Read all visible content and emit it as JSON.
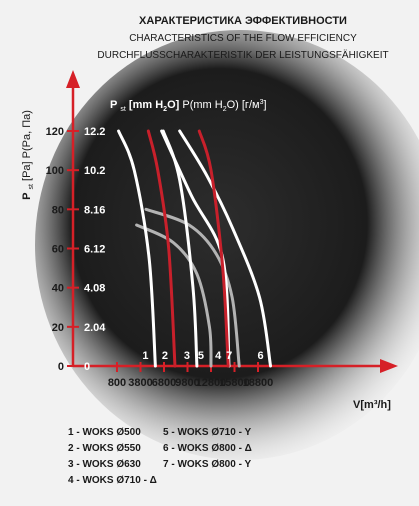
{
  "header": {
    "title_ru": "ХАРАКТЕРИСТИКА ЭФФЕКТИВНОСТИ",
    "title_en": "CHARACTERISTICS OF THE FLOW EFFICIENCY",
    "title_de": "DURCHFLUSSCHARAKTERISTIK DER LEISTUNGSFÄHIGKEIT"
  },
  "axes": {
    "y_label_main": "P",
    "y_label_sub": "st",
    "y_label_rest": "[Pa] P(Pa, Па)",
    "y2_label_main": "P",
    "y2_label_sub": "st",
    "y2_label_unit": "[mm H",
    "y2_label_2": "2",
    "y2_label_close": "O]",
    "y2_label_alt_open": "P(mm H",
    "y2_label_alt_close": "O) [г/м",
    "y2_label_alt_end": "]",
    "x_label": "V[m³/h]"
  },
  "colors": {
    "background": "#f2f2f2",
    "chart_bg": "#1a1a1a",
    "axis_arrow": "#d62027",
    "white_curve": "#ffffff",
    "red_curve": "#c8202b",
    "gray_curve": "#b3b3b3",
    "text": "#1a1a1a"
  },
  "chart_data": {
    "type": "line",
    "title": "CHARACTERISTICS OF THE FLOW EFFICIENCY",
    "xlabel": "V[m³/h]",
    "ylabel": "Pst [Pa] P(Pa, Па)",
    "y2label": "Pst [mm H2O] P(mm H2O) [г/м3]",
    "x_ticks": [
      800,
      3800,
      6800,
      9800,
      12800,
      15800,
      18800
    ],
    "x_tick_labels": [
      "800",
      "3800",
      "6800",
      "9800",
      "12800",
      "15800",
      "18800"
    ],
    "y_ticks": [
      0,
      20,
      40,
      60,
      80,
      100,
      120
    ],
    "y_tick_labels": [
      "0",
      "20",
      "40",
      "60",
      "80",
      "100",
      "120"
    ],
    "y2_tick_labels": [
      "0",
      "2.04",
      "4.08",
      "6.12",
      "8.16",
      "10.2",
      "12.2"
    ],
    "xlim": [
      0,
      21500
    ],
    "ylim": [
      0,
      130
    ],
    "series": [
      {
        "name": "1 - WOKS Ø500",
        "label": "1",
        "color": "white",
        "x": [
          1000,
          3000,
          4900,
          5700
        ],
        "y": [
          120,
          100,
          55,
          0
        ]
      },
      {
        "name": "2 - WOKS Ø550",
        "label": "2",
        "color": "red",
        "x": [
          4800,
          6000,
          7400,
          8200
        ],
        "y": [
          120,
          100,
          60,
          0
        ]
      },
      {
        "name": "3 - WOKS Ø630",
        "label": "3",
        "color": "white",
        "x": [
          6700,
          8800,
          10500,
          11000
        ],
        "y": [
          120,
          95,
          40,
          0
        ]
      },
      {
        "name": "4 - WOKS Ø710 - Δ",
        "label": "4",
        "color": "red",
        "x": [
          11300,
          12800,
          14300,
          15000
        ],
        "y": [
          120,
          100,
          50,
          0
        ]
      },
      {
        "name": "5 - WOKS Ø710 - Y",
        "label": "5",
        "color": "gray",
        "x": [
          3300,
          8000,
          11000,
          12600,
          12800
        ],
        "y": [
          72,
          63,
          47,
          20,
          0
        ]
      },
      {
        "name": "6 - WOKS Ø800 - Δ",
        "label": "6",
        "color": "white",
        "x": [
          8800,
          12300,
          15600,
          19000,
          20400
        ],
        "y": [
          120,
          97,
          70,
          35,
          0
        ]
      },
      {
        "name": "7 - WOKS Ø800 - Y",
        "label": "7",
        "color": "gray",
        "x": [
          4500,
          10000,
          13500,
          15500,
          16400
        ],
        "y": [
          80,
          72,
          57,
          35,
          0
        ]
      },
      {
        "name": "",
        "label": "",
        "color": "white",
        "x": [
          6500,
          10300,
          14300,
          15100
        ],
        "y": [
          120,
          87,
          55,
          0
        ]
      }
    ],
    "legend": {
      "placement": "bottom",
      "left": [
        "1 - WOKS Ø500",
        "2 - WOKS Ø550",
        "3 - WOKS Ø630",
        "4 - WOKS Ø710 - Δ"
      ],
      "right": [
        "5 - WOKS Ø710 - Y",
        "6 - WOKS Ø800 - Δ",
        "7 - WOKS Ø800 - Y"
      ]
    },
    "grid": false
  }
}
